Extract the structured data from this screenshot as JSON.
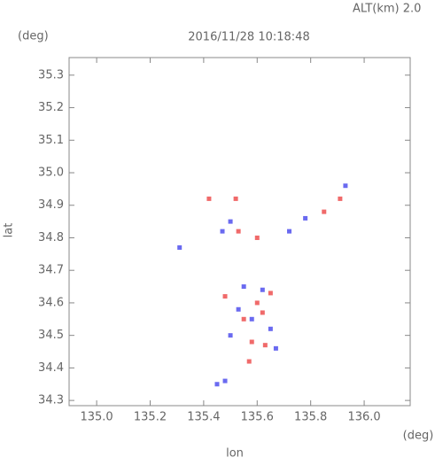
{
  "chart_data": {
    "type": "scatter",
    "title": "2016/11/28 10:18:48",
    "subtitle": "ALT(km) 2.0",
    "xlabel": "lon",
    "ylabel": "lat",
    "xunit": "(deg)",
    "yunit": "(deg)",
    "xlim": [
      134.897,
      136.172
    ],
    "ylim": [
      34.284,
      35.354
    ],
    "xticks": [
      {
        "value": 135,
        "label": "135.0"
      },
      135.2,
      135.4,
      135.6,
      135.8,
      {
        "value": 136,
        "label": "136.0"
      }
    ],
    "yticks": [
      34.3,
      34.4,
      34.5,
      34.6,
      34.7,
      34.8,
      34.9,
      {
        "value": 35,
        "label": "35.0"
      },
      35.1,
      35.2,
      35.3
    ],
    "series": [
      {
        "color": "#f06a6a",
        "x": [
          135.42,
          135.6,
          135.62,
          135.55,
          135.58,
          135.63,
          135.85,
          135.48,
          135.53,
          135.6,
          135.91,
          135.52,
          135.65,
          135.57
        ],
        "y": [
          34.92,
          34.6,
          34.57,
          34.55,
          34.48,
          34.47,
          34.88,
          34.62,
          34.82,
          34.8,
          34.92,
          34.92,
          34.63,
          34.42
        ]
      },
      {
        "color": "#6a6af0",
        "x": [
          135.31,
          135.47,
          135.5,
          135.58,
          135.55,
          135.65,
          135.5,
          135.45,
          135.48,
          135.93,
          135.62,
          135.72,
          135.53,
          135.67,
          135.78
        ],
        "y": [
          34.77,
          34.82,
          34.85,
          34.55,
          34.65,
          34.52,
          34.5,
          34.35,
          34.36,
          34.96,
          34.64,
          34.82,
          34.58,
          34.46,
          34.86
        ]
      }
    ]
  }
}
